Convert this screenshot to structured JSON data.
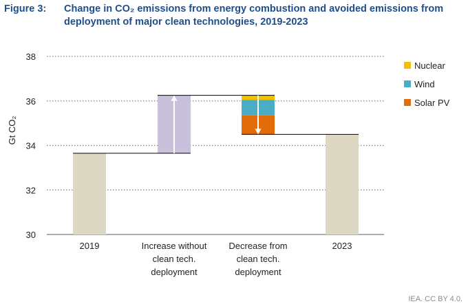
{
  "figure": {
    "label": "Figure 3:",
    "title": "Change in CO₂ emissions from energy combustion and avoided emissions from deployment of major clean technologies, 2019-2023"
  },
  "source": "IEA. CC BY 4.0.",
  "colors": {
    "baseline": "#ddd8c4",
    "increase": "#c9c1dc",
    "nuclear": "#f2c200",
    "wind": "#4bacc6",
    "solar": "#e36c0a",
    "grid": "#7f7f7f"
  },
  "chart_data": {
    "type": "bar",
    "subtype": "waterfall",
    "title": "Change in CO₂ emissions from energy combustion and avoided emissions from deployment of major clean technologies, 2019-2023",
    "ylabel": "Gt CO₂",
    "ylim": [
      30,
      38
    ],
    "yticks": [
      30,
      32,
      34,
      36,
      38
    ],
    "grid": true,
    "legend_position": "right",
    "categories": [
      [
        "2019"
      ],
      [
        "Increase without",
        "clean tech.",
        "deployment"
      ],
      [
        "Decrease from",
        "clean tech.",
        "deployment"
      ],
      [
        "2023"
      ]
    ],
    "values": {
      "emissions_2019": 33.65,
      "increase_without_clean_tech": 2.6,
      "decrease_from_clean_tech": 1.75,
      "emissions_2023": 34.5
    },
    "decrease_breakdown": [
      {
        "name": "Solar PV",
        "value": 0.85
      },
      {
        "name": "Wind",
        "value": 0.7
      },
      {
        "name": "Nuclear",
        "value": 0.2
      }
    ],
    "legend": [
      "Nuclear",
      "Wind",
      "Solar PV"
    ]
  }
}
